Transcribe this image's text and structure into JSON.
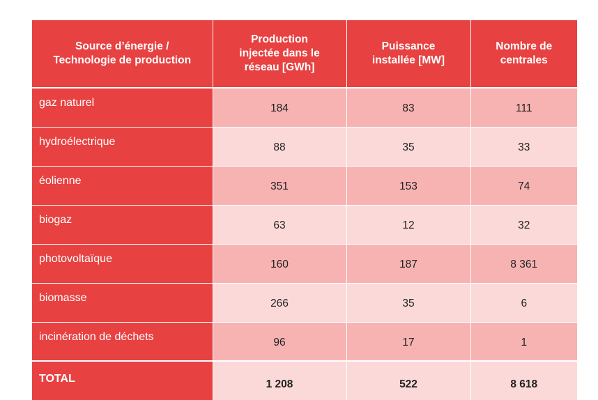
{
  "colors": {
    "header_bg": "#e84141",
    "row_dark": "#f6b3b2",
    "row_light": "#fbd9d8",
    "header_text": "#ffffff"
  },
  "table": {
    "headers": [
      "Source d’énergie /\nTechnologie de production",
      "Production\ninjectée dans le\nréseau [GWh]",
      "Puissance\ninstallée [MW]",
      "Nombre de\ncentrales"
    ],
    "rows": [
      {
        "source": "gaz naturel",
        "production": "184",
        "puissance": "83",
        "centrales": "111"
      },
      {
        "source": "hydroélectrique",
        "production": "88",
        "puissance": "35",
        "centrales": "33"
      },
      {
        "source": "éolienne",
        "production": "351",
        "puissance": "153",
        "centrales": "74"
      },
      {
        "source": "biogaz",
        "production": "63",
        "puissance": "12",
        "centrales": "32"
      },
      {
        "source": "photovoltaïque",
        "production": "160",
        "puissance": "187",
        "centrales": "8 361"
      },
      {
        "source": "biomasse",
        "production": "266",
        "puissance": "35",
        "centrales": "6"
      },
      {
        "source": "incinération de déchets",
        "production": "96",
        "puissance": "17",
        "centrales": "1"
      }
    ],
    "total": {
      "label": "TOTAL",
      "production": "1 208",
      "puissance": "522",
      "centrales": "8 618"
    }
  }
}
